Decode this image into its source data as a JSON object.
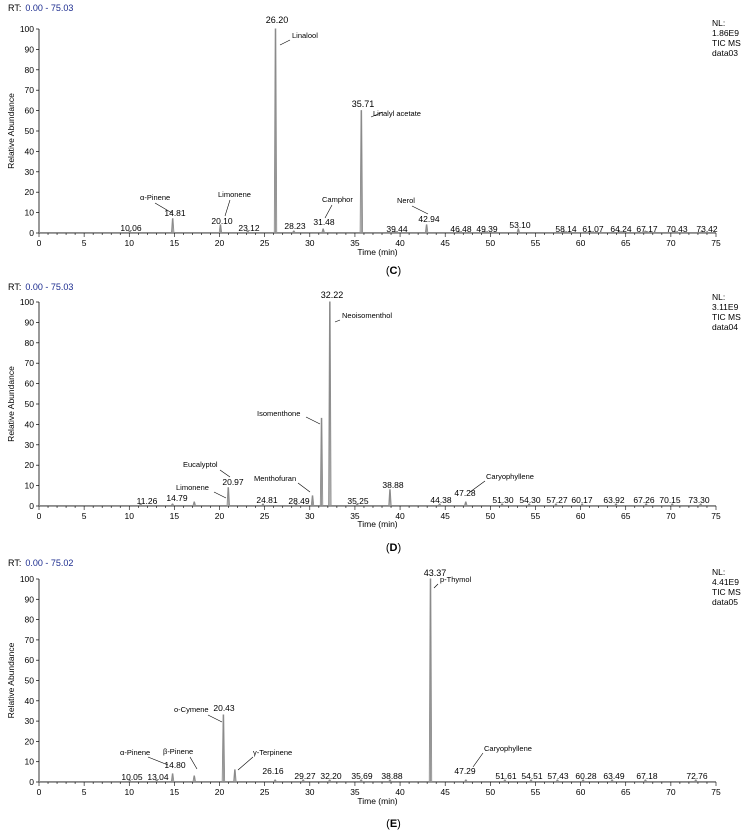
{
  "chart_data": [
    {
      "type": "line",
      "rt_prefix": "RT:",
      "rt_range": "0.00 - 75.03",
      "nl_label": "NL:",
      "nl_value": "1.86E9",
      "scan_label": "TIC  MS",
      "file_label": "data03",
      "ylabel": "Relative Abundance",
      "xlabel": "Time (min)",
      "panel_label": "C",
      "xlim": [
        0,
        75
      ],
      "ylim": [
        0,
        100
      ],
      "x_ticks": [
        0,
        5,
        10,
        15,
        20,
        25,
        30,
        35,
        40,
        45,
        50,
        55,
        60,
        65,
        70,
        75
      ],
      "y_ticks": [
        0,
        10,
        20,
        30,
        40,
        50,
        60,
        70,
        80,
        90,
        100
      ],
      "peaks": [
        {
          "rt": 10.06,
          "abundance": 1
        },
        {
          "rt": 14.81,
          "abundance": 7
        },
        {
          "rt": 20.1,
          "abundance": 4
        },
        {
          "rt": 23.12,
          "abundance": 1
        },
        {
          "rt": 26.2,
          "abundance": 100
        },
        {
          "rt": 28.23,
          "abundance": 1
        },
        {
          "rt": 31.48,
          "abundance": 2
        },
        {
          "rt": 35.71,
          "abundance": 60
        },
        {
          "rt": 39.44,
          "abundance": 1
        },
        {
          "rt": 42.94,
          "abundance": 4
        },
        {
          "rt": 46.48,
          "abundance": 1
        },
        {
          "rt": 49.39,
          "abundance": 1
        },
        {
          "rt": 53.1,
          "abundance": 2
        },
        {
          "rt": 58.14,
          "abundance": 1
        },
        {
          "rt": 61.07,
          "abundance": 1
        },
        {
          "rt": 64.24,
          "abundance": 1
        },
        {
          "rt": 67.17,
          "abundance": 1
        },
        {
          "rt": 70.43,
          "abundance": 1
        },
        {
          "rt": 73.42,
          "abundance": 1
        }
      ],
      "peak_labels": [
        "10.06",
        "14.81",
        "20.10",
        "23.12",
        "26.20",
        "28.23",
        "31.48",
        "35.71",
        "39.44",
        "42.94",
        "46.48",
        "49.39",
        "53.10",
        "58.14",
        "61.07",
        "64.24",
        "67.17",
        "70.43",
        "73.42"
      ],
      "compounds": [
        {
          "name": "α-Pinene",
          "rt": 14.81
        },
        {
          "name": "Limonene",
          "rt": 20.1
        },
        {
          "name": "Linalool",
          "rt": 26.2
        },
        {
          "name": "Camphor",
          "rt": 31.48
        },
        {
          "name": "Linalyl acetate",
          "rt": 35.71
        },
        {
          "name": "Nerol",
          "rt": 42.94
        }
      ]
    },
    {
      "type": "line",
      "rt_prefix": "RT:",
      "rt_range": "0.00 - 75.03",
      "nl_label": "NL:",
      "nl_value": "3.11E9",
      "scan_label": "TIC  MS",
      "file_label": "data04",
      "ylabel": "Relative Abundance",
      "xlabel": "Time (min)",
      "panel_label": "D",
      "xlim": [
        0,
        75
      ],
      "ylim": [
        0,
        100
      ],
      "x_ticks": [
        0,
        5,
        10,
        15,
        20,
        25,
        30,
        35,
        40,
        45,
        50,
        55,
        60,
        65,
        70,
        75
      ],
      "y_ticks": [
        0,
        10,
        20,
        30,
        40,
        50,
        60,
        70,
        80,
        90,
        100
      ],
      "peaks": [
        {
          "rt": 11.26,
          "abundance": 1
        },
        {
          "rt": 14.79,
          "abundance": 1
        },
        {
          "rt": 17.2,
          "abundance": 2
        },
        {
          "rt": 20.97,
          "abundance": 9
        },
        {
          "rt": 24.81,
          "abundance": 1
        },
        {
          "rt": 28.49,
          "abundance": 1
        },
        {
          "rt": 30.3,
          "abundance": 5
        },
        {
          "rt": 31.3,
          "abundance": 43
        },
        {
          "rt": 32.22,
          "abundance": 100
        },
        {
          "rt": 35.25,
          "abundance": 1
        },
        {
          "rt": 38.88,
          "abundance": 8
        },
        {
          "rt": 44.38,
          "abundance": 1
        },
        {
          "rt": 47.28,
          "abundance": 2
        },
        {
          "rt": 51.3,
          "abundance": 1
        },
        {
          "rt": 54.3,
          "abundance": 1
        },
        {
          "rt": 57.27,
          "abundance": 1
        },
        {
          "rt": 60.17,
          "abundance": 1
        },
        {
          "rt": 63.92,
          "abundance": 1
        },
        {
          "rt": 67.26,
          "abundance": 1
        },
        {
          "rt": 70.15,
          "abundance": 1
        },
        {
          "rt": 73.3,
          "abundance": 1
        }
      ],
      "peak_labels": [
        "11.26",
        "14.79",
        "20.97",
        "24.81",
        "28.49",
        "32.22",
        "35.25",
        "38.88",
        "44.38",
        "47.28",
        "51.30",
        "54.30",
        "57.27",
        "60.17",
        "63.92",
        "67.26",
        "70.15",
        "73.30"
      ],
      "compounds": [
        {
          "name": "Limonene",
          "rt": 17.2
        },
        {
          "name": "Eucalyptol",
          "rt": 20.97
        },
        {
          "name": "Menthofuran",
          "rt": 30.3
        },
        {
          "name": "Isomenthone",
          "rt": 31.3
        },
        {
          "name": "Neoisomenthol",
          "rt": 32.22
        },
        {
          "name": "Caryophyllene",
          "rt": 47.28
        }
      ]
    },
    {
      "type": "line",
      "rt_prefix": "RT:",
      "rt_range": "0.00 - 75.02",
      "nl_label": "NL:",
      "nl_value": "4.41E9",
      "scan_label": "TIC  MS",
      "file_label": "data05",
      "ylabel": "Relative Abundance",
      "xlabel": "Time (min)",
      "panel_label": "E",
      "xlim": [
        0,
        75
      ],
      "ylim": [
        0,
        100
      ],
      "x_ticks": [
        0,
        5,
        10,
        15,
        20,
        25,
        30,
        35,
        40,
        45,
        50,
        55,
        60,
        65,
        70,
        75
      ],
      "y_ticks": [
        0,
        10,
        20,
        30,
        40,
        50,
        60,
        70,
        80,
        90,
        100
      ],
      "peaks": [
        {
          "rt": 10.05,
          "abundance": 1
        },
        {
          "rt": 13.04,
          "abundance": 1
        },
        {
          "rt": 14.8,
          "abundance": 4
        },
        {
          "rt": 17.2,
          "abundance": 3
        },
        {
          "rt": 20.43,
          "abundance": 33
        },
        {
          "rt": 21.7,
          "abundance": 6
        },
        {
          "rt": 26.16,
          "abundance": 1
        },
        {
          "rt": 29.27,
          "abundance": 1
        },
        {
          "rt": 32.2,
          "abundance": 1
        },
        {
          "rt": 35.69,
          "abundance": 1
        },
        {
          "rt": 38.88,
          "abundance": 1
        },
        {
          "rt": 43.37,
          "abundance": 100
        },
        {
          "rt": 47.29,
          "abundance": 1
        },
        {
          "rt": 51.61,
          "abundance": 1
        },
        {
          "rt": 54.51,
          "abundance": 1
        },
        {
          "rt": 57.43,
          "abundance": 1
        },
        {
          "rt": 60.28,
          "abundance": 1
        },
        {
          "rt": 63.49,
          "abundance": 1
        },
        {
          "rt": 67.18,
          "abundance": 1
        },
        {
          "rt": 72.76,
          "abundance": 1
        }
      ],
      "peak_labels": [
        "10.05",
        "13.04",
        "14.80",
        "20.43",
        "26.16",
        "29.27",
        "32.20",
        "35.69",
        "38.88",
        "43.37",
        "47.29",
        "51.61",
        "54.51",
        "57.43",
        "60.28",
        "63.49",
        "67.18",
        "72.76"
      ],
      "compounds": [
        {
          "name": "α-Pinene",
          "rt": 14.8
        },
        {
          "name": "β-Pinene",
          "rt": 17.2
        },
        {
          "name": "o-Cymene",
          "rt": 20.43
        },
        {
          "name": "γ-Terpinene",
          "rt": 21.7
        },
        {
          "name": "p-Thymol",
          "rt": 43.37
        },
        {
          "name": "Caryophyllene",
          "rt": 47.29
        }
      ]
    }
  ],
  "colors": {
    "trace": "#8a8a8a",
    "axis": "#000000",
    "rt_range_text": "#1c2c8f"
  }
}
